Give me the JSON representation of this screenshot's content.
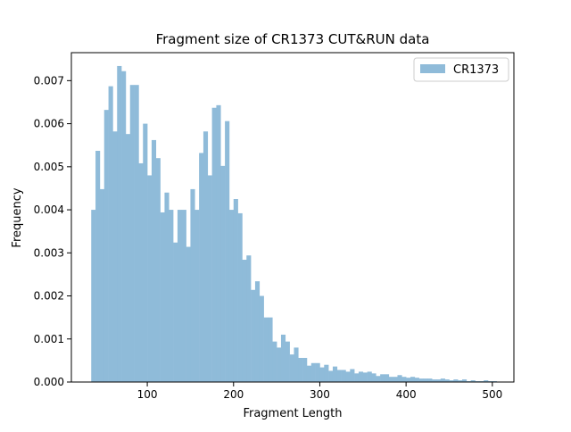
{
  "chart_data": {
    "type": "bar",
    "subtype": "histogram",
    "title": "Fragment size of CR1373 CUT&RUN data",
    "xlabel": "Fragment Length",
    "ylabel": "Frequency",
    "xlim": [
      12,
      525
    ],
    "ylim": [
      0,
      0.00765
    ],
    "xticks": [
      100,
      200,
      300,
      400,
      500
    ],
    "xtick_labels": [
      "100",
      "200",
      "300",
      "400",
      "500"
    ],
    "yticks": [
      0,
      0.001,
      0.002,
      0.003,
      0.004,
      0.005,
      0.006,
      0.007
    ],
    "ytick_labels": [
      "0.000",
      "0.001",
      "0.002",
      "0.003",
      "0.004",
      "0.005",
      "0.006",
      "0.007"
    ],
    "grid": false,
    "legend_position": "top-right",
    "bin_start": 35,
    "bin_width": 5,
    "series": [
      {
        "name": "CR1373",
        "color": "#8fbbd9",
        "values": [
          0.004,
          0.00537,
          0.00448,
          0.00632,
          0.00687,
          0.00582,
          0.00734,
          0.00722,
          0.00576,
          0.0069,
          0.0069,
          0.00508,
          0.006,
          0.0048,
          0.00562,
          0.0052,
          0.00394,
          0.0044,
          0.004,
          0.00324,
          0.004,
          0.004,
          0.00314,
          0.00448,
          0.004,
          0.00532,
          0.00582,
          0.0048,
          0.00637,
          0.00643,
          0.00502,
          0.00606,
          0.004,
          0.00425,
          0.00392,
          0.00284,
          0.00294,
          0.00214,
          0.00234,
          0.002,
          0.0015,
          0.0015,
          0.00094,
          0.0008,
          0.0011,
          0.00094,
          0.00064,
          0.0008,
          0.00056,
          0.00056,
          0.00038,
          0.00044,
          0.00044,
          0.00034,
          0.0004,
          0.00026,
          0.00036,
          0.00028,
          0.00028,
          0.00024,
          0.0003,
          0.0002,
          0.00024,
          0.00022,
          0.00024,
          0.0002,
          0.00014,
          0.00018,
          0.00018,
          0.00012,
          0.00012,
          0.00016,
          0.00012,
          0.0001,
          0.00012,
          0.0001,
          8e-05,
          8e-05,
          8e-05,
          6e-05,
          6e-05,
          8e-05,
          6e-05,
          4e-05,
          6e-05,
          4e-05,
          6e-05,
          2e-05,
          4e-05,
          2e-05,
          2e-05,
          4e-05,
          2e-05,
          2e-05
        ]
      }
    ]
  }
}
